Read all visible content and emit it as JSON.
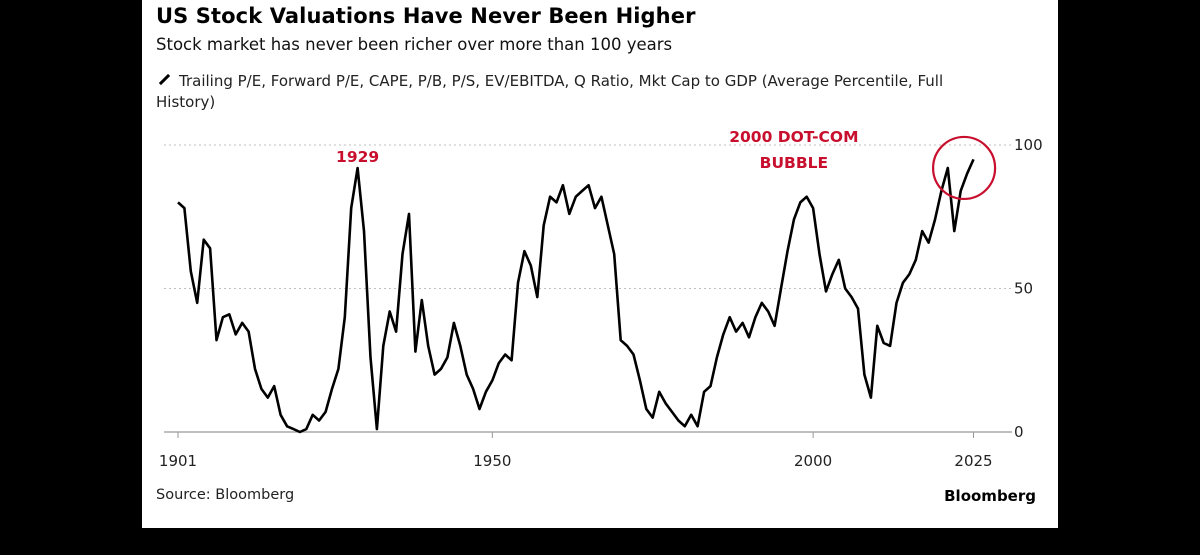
{
  "title": "US Stock Valuations Have Never Been Higher",
  "subtitle": "Stock market has never been richer over more than 100 years",
  "legend_label": "Trailing P/E, Forward P/E, CAPE, P/B, P/S, EV/EBITDA, Q Ratio, Mkt Cap to GDP (Average Percentile, Full History)",
  "source": "Source: Bloomberg",
  "brand": "Bloomberg",
  "colors": {
    "series": "#000000",
    "annotation": "#c8102e",
    "grid": "#bfbfbf",
    "axis": "#999999"
  },
  "chart_data": {
    "type": "line",
    "xlim": [
      1901,
      2031
    ],
    "ylim": [
      0,
      100
    ],
    "x_ticks": [
      {
        "value": 1901,
        "label": "1901"
      },
      {
        "value": 1950,
        "label": "1950"
      },
      {
        "value": 2000,
        "label": "2000"
      },
      {
        "value": 2025,
        "label": "2025"
      }
    ],
    "y_ticks": [
      {
        "value": 0,
        "label": "0"
      },
      {
        "value": 50,
        "label": "50"
      },
      {
        "value": 100,
        "label": "100"
      }
    ],
    "grid": "horizontal dotted at 50 and 100",
    "annotations": [
      {
        "label": "1929",
        "x": 1929,
        "y": 94
      },
      {
        "label": "2000 DOT-COM",
        "x": 1997,
        "y": 101
      },
      {
        "label": "BUBBLE",
        "x": 1997,
        "y": 92
      },
      {
        "label": "",
        "x": 2024,
        "y": 92,
        "shape": "circle"
      }
    ],
    "series": [
      {
        "values": [
          [
            1901,
            80
          ],
          [
            1902,
            78
          ],
          [
            1903,
            56
          ],
          [
            1904,
            45
          ],
          [
            1905,
            67
          ],
          [
            1906,
            64
          ],
          [
            1907,
            32
          ],
          [
            1908,
            40
          ],
          [
            1909,
            41
          ],
          [
            1910,
            34
          ],
          [
            1911,
            38
          ],
          [
            1912,
            35
          ],
          [
            1913,
            22
          ],
          [
            1914,
            15
          ],
          [
            1915,
            12
          ],
          [
            1916,
            16
          ],
          [
            1917,
            6
          ],
          [
            1918,
            2
          ],
          [
            1919,
            1
          ],
          [
            1920,
            0
          ],
          [
            1921,
            1
          ],
          [
            1922,
            6
          ],
          [
            1923,
            4
          ],
          [
            1924,
            7
          ],
          [
            1925,
            15
          ],
          [
            1926,
            22
          ],
          [
            1927,
            40
          ],
          [
            1928,
            78
          ],
          [
            1929,
            92
          ],
          [
            1930,
            70
          ],
          [
            1931,
            26
          ],
          [
            1932,
            1
          ],
          [
            1933,
            30
          ],
          [
            1934,
            42
          ],
          [
            1935,
            35
          ],
          [
            1936,
            62
          ],
          [
            1937,
            76
          ],
          [
            1938,
            28
          ],
          [
            1939,
            46
          ],
          [
            1940,
            30
          ],
          [
            1941,
            20
          ],
          [
            1942,
            22
          ],
          [
            1943,
            26
          ],
          [
            1944,
            38
          ],
          [
            1945,
            30
          ],
          [
            1946,
            20
          ],
          [
            1947,
            15
          ],
          [
            1948,
            8
          ],
          [
            1949,
            14
          ],
          [
            1950,
            18
          ],
          [
            1951,
            24
          ],
          [
            1952,
            27
          ],
          [
            1953,
            25
          ],
          [
            1954,
            52
          ],
          [
            1955,
            63
          ],
          [
            1956,
            58
          ],
          [
            1957,
            47
          ],
          [
            1958,
            72
          ],
          [
            1959,
            82
          ],
          [
            1960,
            80
          ],
          [
            1961,
            86
          ],
          [
            1962,
            76
          ],
          [
            1963,
            82
          ],
          [
            1964,
            84
          ],
          [
            1965,
            86
          ],
          [
            1966,
            78
          ],
          [
            1967,
            82
          ],
          [
            1968,
            72
          ],
          [
            1969,
            62
          ],
          [
            1970,
            32
          ],
          [
            1971,
            30
          ],
          [
            1972,
            27
          ],
          [
            1973,
            18
          ],
          [
            1974,
            8
          ],
          [
            1975,
            5
          ],
          [
            1976,
            14
          ],
          [
            1977,
            10
          ],
          [
            1978,
            7
          ],
          [
            1979,
            4
          ],
          [
            1980,
            2
          ],
          [
            1981,
            6
          ],
          [
            1982,
            2
          ],
          [
            1983,
            14
          ],
          [
            1984,
            16
          ],
          [
            1985,
            26
          ],
          [
            1986,
            34
          ],
          [
            1987,
            40
          ],
          [
            1988,
            35
          ],
          [
            1989,
            38
          ],
          [
            1990,
            33
          ],
          [
            1991,
            40
          ],
          [
            1992,
            45
          ],
          [
            1993,
            42
          ],
          [
            1994,
            37
          ],
          [
            1995,
            50
          ],
          [
            1996,
            63
          ],
          [
            1997,
            74
          ],
          [
            1998,
            80
          ],
          [
            1999,
            82
          ],
          [
            2000,
            78
          ],
          [
            2001,
            62
          ],
          [
            2002,
            49
          ],
          [
            2003,
            55
          ],
          [
            2004,
            60
          ],
          [
            2005,
            50
          ],
          [
            2006,
            47
          ],
          [
            2007,
            43
          ],
          [
            2008,
            20
          ],
          [
            2009,
            12
          ],
          [
            2010,
            37
          ],
          [
            2011,
            31
          ],
          [
            2012,
            30
          ],
          [
            2013,
            45
          ],
          [
            2014,
            52
          ],
          [
            2015,
            55
          ],
          [
            2016,
            60
          ],
          [
            2017,
            70
          ],
          [
            2018,
            66
          ],
          [
            2019,
            74
          ],
          [
            2020,
            84
          ],
          [
            2021,
            92
          ],
          [
            2022,
            70
          ],
          [
            2023,
            84
          ],
          [
            2024,
            90
          ],
          [
            2025,
            95
          ]
        ]
      }
    ]
  }
}
